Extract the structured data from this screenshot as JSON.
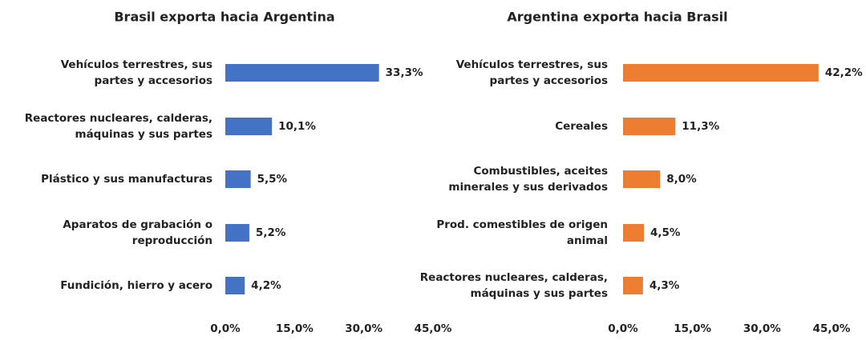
{
  "chart_data": [
    {
      "type": "bar",
      "orientation": "horizontal",
      "title": "Brasil exporta hacia Argentina",
      "categories": [
        "Vehículos terrestres, sus\npartes y accesorios",
        "Reactores nucleares, calderas,\nmáquinas y sus partes",
        "Plástico y sus manufacturas",
        "Aparatos de grabación o\nreproducción",
        "Fundición, hierro y acero"
      ],
      "values": [
        33.3,
        10.1,
        5.5,
        5.2,
        4.2
      ],
      "value_labels": [
        "33,3%",
        "10,1%",
        "5,5%",
        "5,2%",
        "4,2%"
      ],
      "color": "#4472c4",
      "xlim": [
        0,
        45
      ],
      "xticks": [
        {
          "value": 0,
          "label": "0,0%"
        },
        {
          "value": 15,
          "label": "15,0%"
        },
        {
          "value": 30,
          "label": "30,0%"
        },
        {
          "value": 45,
          "label": "45,0%"
        }
      ]
    },
    {
      "type": "bar",
      "orientation": "horizontal",
      "title": "Argentina exporta hacia Brasil",
      "categories": [
        "Vehículos terrestres, sus\npartes y accesorios",
        "Cereales",
        "Combustibles, aceites\nminerales y sus derivados",
        "Prod. comestibles de origen\nanimal",
        "Reactores nucleares, calderas,\nmáquinas y sus partes"
      ],
      "values": [
        42.2,
        11.3,
        8.0,
        4.5,
        4.3
      ],
      "value_labels": [
        "42,2%",
        "11,3%",
        "8,0%",
        "4,5%",
        "4,3%"
      ],
      "color": "#ed7d31",
      "xlim": [
        0,
        45
      ],
      "xticks": [
        {
          "value": 0,
          "label": "0,0%"
        },
        {
          "value": 15,
          "label": "15,0%"
        },
        {
          "value": 30,
          "label": "30,0%"
        },
        {
          "value": 45,
          "label": "45,0%"
        }
      ]
    }
  ]
}
